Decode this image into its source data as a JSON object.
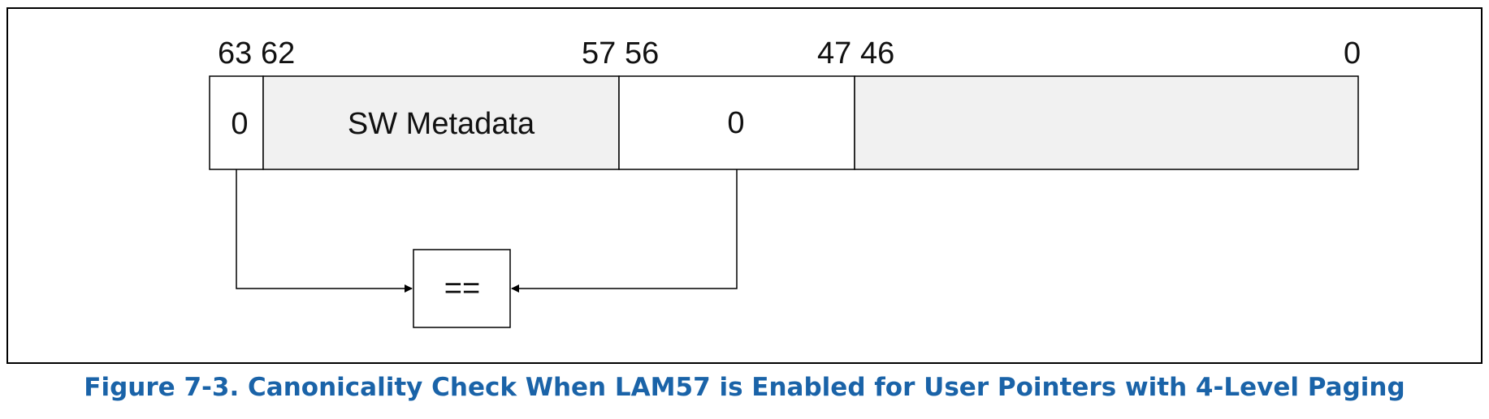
{
  "figure": {
    "caption": "Figure 7-3.  Canonicality Check When LAM57 is Enabled for User Pointers with 4-Level Paging",
    "caption_color": "#1a63a8"
  },
  "bit_labels": {
    "b63": "63",
    "b62": "62",
    "b57": "57",
    "b56": "56",
    "b47": "47",
    "b46": "46",
    "b0": "0"
  },
  "fields": {
    "bit63": {
      "text": "0",
      "fill": "#ffffff"
    },
    "metadata": {
      "text": "SW Metadata",
      "fill": "#f1f1f1"
    },
    "bits56_47": {
      "text": "0",
      "fill": "#ffffff"
    },
    "bits46_0": {
      "text": "",
      "fill": "#f1f1f1"
    }
  },
  "compare": {
    "text": "=="
  }
}
